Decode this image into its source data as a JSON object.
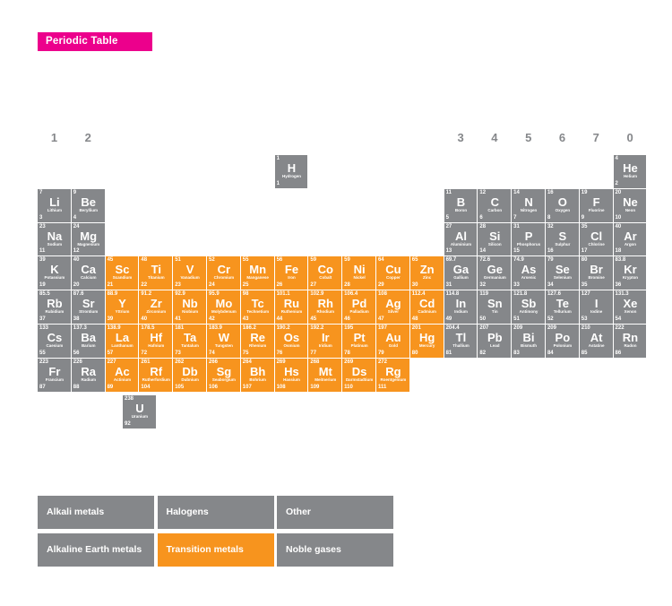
{
  "title": "Periodic Table",
  "colors": {
    "accent_pink": "#EC008C",
    "cell_gray": "#85878A",
    "cell_orange": "#F7941E",
    "text_white": "#FFFFFF"
  },
  "group_labels": [
    {
      "label": "1",
      "col": 1
    },
    {
      "label": "2",
      "col": 2
    },
    {
      "label": "3",
      "col": 13
    },
    {
      "label": "4",
      "col": 14
    },
    {
      "label": "5",
      "col": 15
    },
    {
      "label": "6",
      "col": 16
    },
    {
      "label": "7",
      "col": 17
    },
    {
      "label": "0",
      "col": 18
    }
  ],
  "elements": [
    {
      "row": 1,
      "col": 8,
      "mass": "1",
      "symbol": "H",
      "name": "Hydrogen",
      "number": "1",
      "color": "gray"
    },
    {
      "row": 1,
      "col": 18,
      "mass": "4",
      "symbol": "He",
      "name": "Helium",
      "number": "2",
      "color": "gray"
    },
    {
      "row": 2,
      "col": 1,
      "mass": "7",
      "symbol": "Li",
      "name": "Lithium",
      "number": "3",
      "color": "gray"
    },
    {
      "row": 2,
      "col": 2,
      "mass": "9",
      "symbol": "Be",
      "name": "Beryllium",
      "number": "4",
      "color": "gray"
    },
    {
      "row": 2,
      "col": 13,
      "mass": "11",
      "symbol": "B",
      "name": "Boron",
      "number": "5",
      "color": "gray"
    },
    {
      "row": 2,
      "col": 14,
      "mass": "12",
      "symbol": "C",
      "name": "Carbon",
      "number": "6",
      "color": "gray"
    },
    {
      "row": 2,
      "col": 15,
      "mass": "14",
      "symbol": "N",
      "name": "Nitrogen",
      "number": "7",
      "color": "gray"
    },
    {
      "row": 2,
      "col": 16,
      "mass": "16",
      "symbol": "O",
      "name": "Oxygen",
      "number": "8",
      "color": "gray"
    },
    {
      "row": 2,
      "col": 17,
      "mass": "19",
      "symbol": "F",
      "name": "Fluorine",
      "number": "9",
      "color": "gray"
    },
    {
      "row": 2,
      "col": 18,
      "mass": "20",
      "symbol": "Ne",
      "name": "Neon",
      "number": "10",
      "color": "gray"
    },
    {
      "row": 3,
      "col": 1,
      "mass": "23",
      "symbol": "Na",
      "name": "Sodium",
      "number": "11",
      "color": "gray"
    },
    {
      "row": 3,
      "col": 2,
      "mass": "24",
      "symbol": "Mg",
      "name": "Magnesium",
      "number": "12",
      "color": "gray"
    },
    {
      "row": 3,
      "col": 13,
      "mass": "27",
      "symbol": "Al",
      "name": "Aluminium",
      "number": "13",
      "color": "gray"
    },
    {
      "row": 3,
      "col": 14,
      "mass": "28",
      "symbol": "Si",
      "name": "Silicon",
      "number": "14",
      "color": "gray"
    },
    {
      "row": 3,
      "col": 15,
      "mass": "31",
      "symbol": "P",
      "name": "Phosphorus",
      "number": "15",
      "color": "gray"
    },
    {
      "row": 3,
      "col": 16,
      "mass": "32",
      "symbol": "S",
      "name": "Sulphur",
      "number": "16",
      "color": "gray"
    },
    {
      "row": 3,
      "col": 17,
      "mass": "35",
      "symbol": "Cl",
      "name": "Chlorine",
      "number": "17",
      "color": "gray"
    },
    {
      "row": 3,
      "col": 18,
      "mass": "40",
      "symbol": "Ar",
      "name": "Argon",
      "number": "18",
      "color": "gray"
    },
    {
      "row": 4,
      "col": 1,
      "mass": "39",
      "symbol": "K",
      "name": "Potassium",
      "number": "19",
      "color": "gray"
    },
    {
      "row": 4,
      "col": 2,
      "mass": "40",
      "symbol": "Ca",
      "name": "Calcium",
      "number": "20",
      "color": "gray"
    },
    {
      "row": 4,
      "col": 3,
      "mass": "45",
      "symbol": "Sc",
      "name": "Scandium",
      "number": "21",
      "color": "orange"
    },
    {
      "row": 4,
      "col": 4,
      "mass": "48",
      "symbol": "Ti",
      "name": "Titanium",
      "number": "22",
      "color": "orange"
    },
    {
      "row": 4,
      "col": 5,
      "mass": "51",
      "symbol": "V",
      "name": "Vanadium",
      "number": "23",
      "color": "orange"
    },
    {
      "row": 4,
      "col": 6,
      "mass": "52",
      "symbol": "Cr",
      "name": "Chromium",
      "number": "24",
      "color": "orange"
    },
    {
      "row": 4,
      "col": 7,
      "mass": "55",
      "symbol": "Mn",
      "name": "Manganese",
      "number": "25",
      "color": "orange"
    },
    {
      "row": 4,
      "col": 8,
      "mass": "56",
      "symbol": "Fe",
      "name": "Iron",
      "number": "26",
      "color": "orange"
    },
    {
      "row": 4,
      "col": 9,
      "mass": "59",
      "symbol": "Co",
      "name": "Cobalt",
      "number": "27",
      "color": "orange"
    },
    {
      "row": 4,
      "col": 10,
      "mass": "59",
      "symbol": "Ni",
      "name": "Nickel",
      "number": "28",
      "color": "orange"
    },
    {
      "row": 4,
      "col": 11,
      "mass": "64",
      "symbol": "Cu",
      "name": "Copper",
      "number": "29",
      "color": "orange"
    },
    {
      "row": 4,
      "col": 12,
      "mass": "65",
      "symbol": "Zn",
      "name": "Zinc",
      "number": "30",
      "color": "orange"
    },
    {
      "row": 4,
      "col": 13,
      "mass": "69.7",
      "symbol": "Ga",
      "name": "Gallium",
      "number": "31",
      "color": "gray"
    },
    {
      "row": 4,
      "col": 14,
      "mass": "72.6",
      "symbol": "Ge",
      "name": "Germanium",
      "number": "32",
      "color": "gray"
    },
    {
      "row": 4,
      "col": 15,
      "mass": "74.9",
      "symbol": "As",
      "name": "Arsenic",
      "number": "33",
      "color": "gray"
    },
    {
      "row": 4,
      "col": 16,
      "mass": "79",
      "symbol": "Se",
      "name": "Selenium",
      "number": "34",
      "color": "gray"
    },
    {
      "row": 4,
      "col": 17,
      "mass": "80",
      "symbol": "Br",
      "name": "Bromine",
      "number": "35",
      "color": "gray"
    },
    {
      "row": 4,
      "col": 18,
      "mass": "83.8",
      "symbol": "Kr",
      "name": "Krypton",
      "number": "36",
      "color": "gray"
    },
    {
      "row": 5,
      "col": 1,
      "mass": "85.5",
      "symbol": "Rb",
      "name": "Rubidium",
      "number": "37",
      "color": "gray"
    },
    {
      "row": 5,
      "col": 2,
      "mass": "87.6",
      "symbol": "Sr",
      "name": "Strontium",
      "number": "38",
      "color": "gray"
    },
    {
      "row": 5,
      "col": 3,
      "mass": "88.9",
      "symbol": "Y",
      "name": "Yttrium",
      "number": "39",
      "color": "orange"
    },
    {
      "row": 5,
      "col": 4,
      "mass": "91.2",
      "symbol": "Zr",
      "name": "Zirconium",
      "number": "40",
      "color": "orange"
    },
    {
      "row": 5,
      "col": 5,
      "mass": "92.9",
      "symbol": "Nb",
      "name": "Niobium",
      "number": "41",
      "color": "orange"
    },
    {
      "row": 5,
      "col": 6,
      "mass": "95.9",
      "symbol": "Mo",
      "name": "Molybdenum",
      "number": "42",
      "color": "orange"
    },
    {
      "row": 5,
      "col": 7,
      "mass": "98",
      "symbol": "Tc",
      "name": "Technetium",
      "number": "43",
      "color": "orange"
    },
    {
      "row": 5,
      "col": 8,
      "mass": "101.1",
      "symbol": "Ru",
      "name": "Ruthenium",
      "number": "44",
      "color": "orange"
    },
    {
      "row": 5,
      "col": 9,
      "mass": "102.9",
      "symbol": "Rh",
      "name": "Rhodium",
      "number": "45",
      "color": "orange"
    },
    {
      "row": 5,
      "col": 10,
      "mass": "106.4",
      "symbol": "Pd",
      "name": "Palladium",
      "number": "46",
      "color": "orange"
    },
    {
      "row": 5,
      "col": 11,
      "mass": "108",
      "symbol": "Ag",
      "name": "Silver",
      "number": "47",
      "color": "orange"
    },
    {
      "row": 5,
      "col": 12,
      "mass": "112.4",
      "symbol": "Cd",
      "name": "Cadmium",
      "number": "48",
      "color": "orange"
    },
    {
      "row": 5,
      "col": 13,
      "mass": "114.8",
      "symbol": "In",
      "name": "Indium",
      "number": "49",
      "color": "gray"
    },
    {
      "row": 5,
      "col": 14,
      "mass": "119",
      "symbol": "Sn",
      "name": "Tin",
      "number": "50",
      "color": "gray"
    },
    {
      "row": 5,
      "col": 15,
      "mass": "121.8",
      "symbol": "Sb",
      "name": "Antimony",
      "number": "51",
      "color": "gray"
    },
    {
      "row": 5,
      "col": 16,
      "mass": "127.6",
      "symbol": "Te",
      "name": "Tellurium",
      "number": "52",
      "color": "gray"
    },
    {
      "row": 5,
      "col": 17,
      "mass": "127",
      "symbol": "I",
      "name": "Iodine",
      "number": "53",
      "color": "gray"
    },
    {
      "row": 5,
      "col": 18,
      "mass": "131.3",
      "symbol": "Xe",
      "name": "Xenon",
      "number": "54",
      "color": "gray"
    },
    {
      "row": 6,
      "col": 1,
      "mass": "133",
      "symbol": "Cs",
      "name": "Caesium",
      "number": "55",
      "color": "gray"
    },
    {
      "row": 6,
      "col": 2,
      "mass": "137.3",
      "symbol": "Ba",
      "name": "Barium",
      "number": "56",
      "color": "gray"
    },
    {
      "row": 6,
      "col": 3,
      "mass": "138.9",
      "symbol": "La",
      "name": "Lanthanum",
      "number": "57",
      "color": "orange"
    },
    {
      "row": 6,
      "col": 4,
      "mass": "178.5",
      "symbol": "Hf",
      "name": "Hafnium",
      "number": "72",
      "color": "orange"
    },
    {
      "row": 6,
      "col": 5,
      "mass": "181",
      "symbol": "Ta",
      "name": "Tantalum",
      "number": "73",
      "color": "orange"
    },
    {
      "row": 6,
      "col": 6,
      "mass": "183.9",
      "symbol": "W",
      "name": "Tungsten",
      "number": "74",
      "color": "orange"
    },
    {
      "row": 6,
      "col": 7,
      "mass": "186.2",
      "symbol": "Re",
      "name": "Rhenium",
      "number": "75",
      "color": "orange"
    },
    {
      "row": 6,
      "col": 8,
      "mass": "190.2",
      "symbol": "Os",
      "name": "Osmium",
      "number": "76",
      "color": "orange"
    },
    {
      "row": 6,
      "col": 9,
      "mass": "192.2",
      "symbol": "Ir",
      "name": "Iridium",
      "number": "77",
      "color": "orange"
    },
    {
      "row": 6,
      "col": 10,
      "mass": "195",
      "symbol": "Pt",
      "name": "Platinum",
      "number": "78",
      "color": "orange"
    },
    {
      "row": 6,
      "col": 11,
      "mass": "197",
      "symbol": "Au",
      "name": "Gold",
      "number": "79",
      "color": "orange"
    },
    {
      "row": 6,
      "col": 12,
      "mass": "201",
      "symbol": "Hg",
      "name": "Mercury",
      "number": "80",
      "color": "orange"
    },
    {
      "row": 6,
      "col": 13,
      "mass": "204.4",
      "symbol": "Tl",
      "name": "Thallium",
      "number": "81",
      "color": "gray"
    },
    {
      "row": 6,
      "col": 14,
      "mass": "207",
      "symbol": "Pb",
      "name": "Lead",
      "number": "82",
      "color": "gray"
    },
    {
      "row": 6,
      "col": 15,
      "mass": "209",
      "symbol": "Bi",
      "name": "Bismuth",
      "number": "83",
      "color": "gray"
    },
    {
      "row": 6,
      "col": 16,
      "mass": "209",
      "symbol": "Po",
      "name": "Polonium",
      "number": "84",
      "color": "gray"
    },
    {
      "row": 6,
      "col": 17,
      "mass": "210",
      "symbol": "At",
      "name": "Astatine",
      "number": "85",
      "color": "gray"
    },
    {
      "row": 6,
      "col": 18,
      "mass": "222",
      "symbol": "Rn",
      "name": "Radon",
      "number": "86",
      "color": "gray"
    },
    {
      "row": 7,
      "col": 1,
      "mass": "223",
      "symbol": "Fr",
      "name": "Francium",
      "number": "87",
      "color": "gray"
    },
    {
      "row": 7,
      "col": 2,
      "mass": "226",
      "symbol": "Ra",
      "name": "Radium",
      "number": "88",
      "color": "gray"
    },
    {
      "row": 7,
      "col": 3,
      "mass": "227",
      "symbol": "Ac",
      "name": "Actinium",
      "number": "89",
      "color": "orange"
    },
    {
      "row": 7,
      "col": 4,
      "mass": "261",
      "symbol": "Rf",
      "name": "Rutherfordium",
      "number": "104",
      "color": "orange"
    },
    {
      "row": 7,
      "col": 5,
      "mass": "262",
      "symbol": "Db",
      "name": "Dubnium",
      "number": "105",
      "color": "orange"
    },
    {
      "row": 7,
      "col": 6,
      "mass": "266",
      "symbol": "Sg",
      "name": "Seaborgium",
      "number": "106",
      "color": "orange"
    },
    {
      "row": 7,
      "col": 7,
      "mass": "264",
      "symbol": "Bh",
      "name": "Bohrium",
      "number": "107",
      "color": "orange"
    },
    {
      "row": 7,
      "col": 8,
      "mass": "269",
      "symbol": "Hs",
      "name": "Hassium",
      "number": "108",
      "color": "orange"
    },
    {
      "row": 7,
      "col": 9,
      "mass": "268",
      "symbol": "Mt",
      "name": "Meitnerium",
      "number": "109",
      "color": "orange"
    },
    {
      "row": 7,
      "col": 10,
      "mass": "269",
      "symbol": "Ds",
      "name": "Darmstadtium",
      "number": "110",
      "color": "orange"
    },
    {
      "row": 7,
      "col": 11,
      "mass": "272",
      "symbol": "Rg",
      "name": "Roentgenium",
      "number": "111",
      "color": "orange"
    }
  ],
  "uranium": {
    "mass": "238",
    "symbol": "U",
    "name": "Uranium",
    "number": "92",
    "color": "gray"
  },
  "legend": [
    {
      "label": "Alkali metals",
      "color": "gray"
    },
    {
      "label": "Halogens",
      "color": "gray"
    },
    {
      "label": "Other",
      "color": "gray"
    },
    {
      "label": "Alkaline Earth metals",
      "color": "gray"
    },
    {
      "label": "Transition metals",
      "color": "orange"
    },
    {
      "label": "Noble gases",
      "color": "gray"
    }
  ]
}
